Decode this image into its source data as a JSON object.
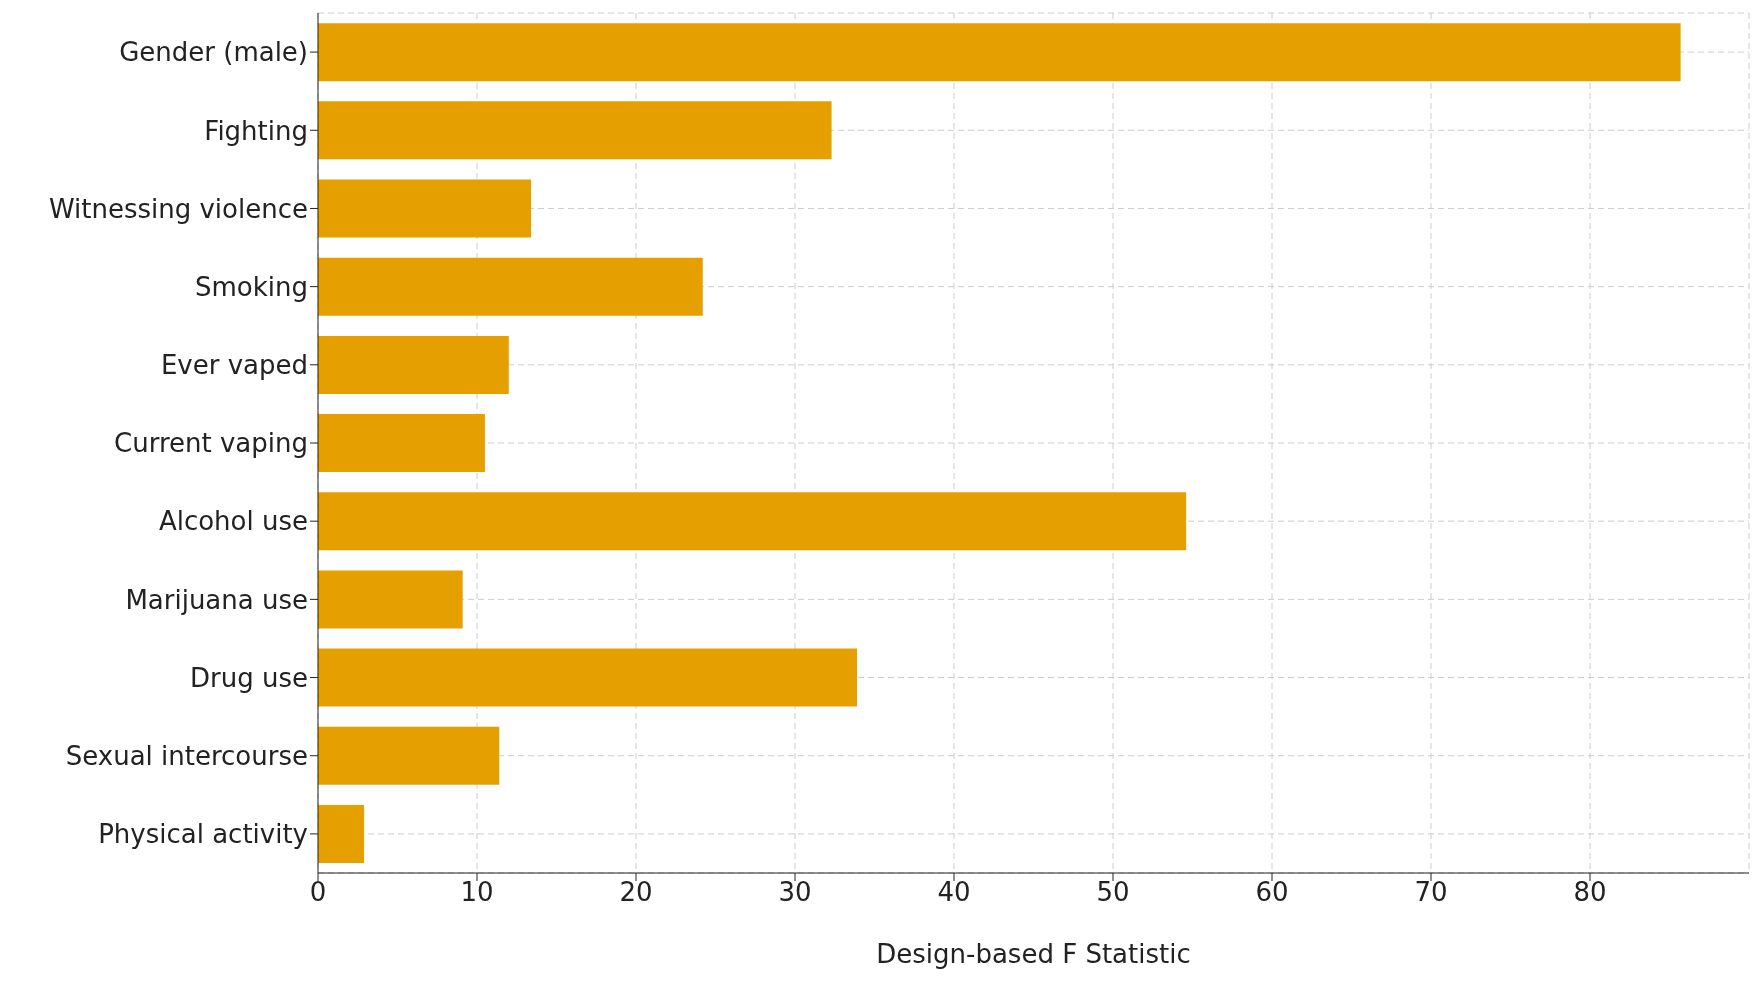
{
  "chart_data": {
    "type": "bar",
    "orientation": "horizontal",
    "xlabel": "Design-based F Statistic",
    "categories": [
      "Gender (male)",
      "Fighting",
      "Witnessing violence",
      "Smoking",
      "Ever vaped",
      "Current vaping",
      "Alcohol use",
      "Marijuana use",
      "Drug use",
      "Sexual intercourse",
      "Physical activity"
    ],
    "values": [
      85.7,
      32.3,
      13.4,
      24.2,
      12.0,
      10.5,
      54.6,
      9.1,
      33.9,
      11.4,
      2.9
    ],
    "color": "#e5a000",
    "xlim": [
      0,
      90
    ],
    "xticks": [
      0,
      10,
      20,
      30,
      40,
      50,
      60,
      70,
      80
    ],
    "grid": true
  }
}
